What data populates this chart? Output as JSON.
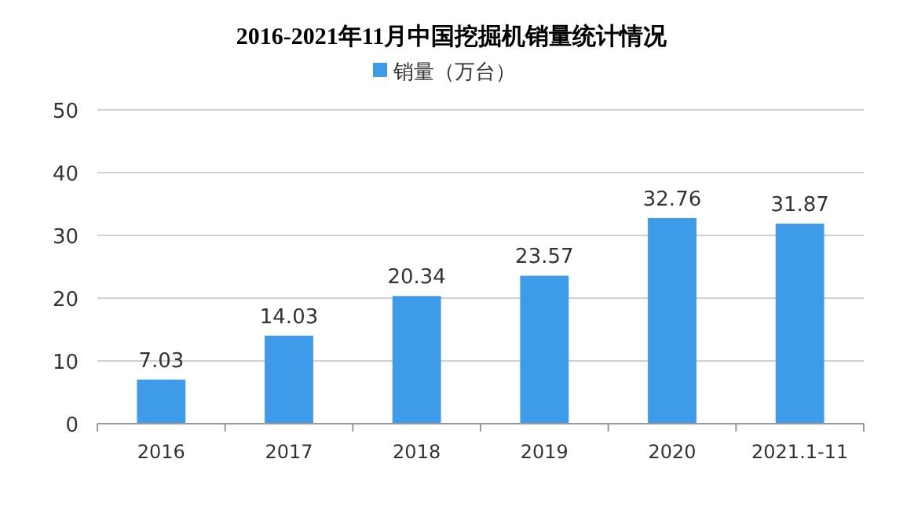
{
  "chart_data": {
    "type": "bar",
    "title": "2016-2021年11月中国挖掘机销量统计情况",
    "categories": [
      "2016",
      "2017",
      "2018",
      "2019",
      "2020",
      "2021.1-11"
    ],
    "series": [
      {
        "name": "销量（万台）",
        "color": "#3d9be9",
        "values": [
          7.03,
          14.03,
          20.34,
          23.57,
          32.76,
          31.87
        ]
      }
    ],
    "ylim": [
      0,
      50
    ],
    "yticks": [
      0,
      10,
      20,
      30,
      40,
      50
    ],
    "grid": "y",
    "legend": "top",
    "data_labels": true
  }
}
